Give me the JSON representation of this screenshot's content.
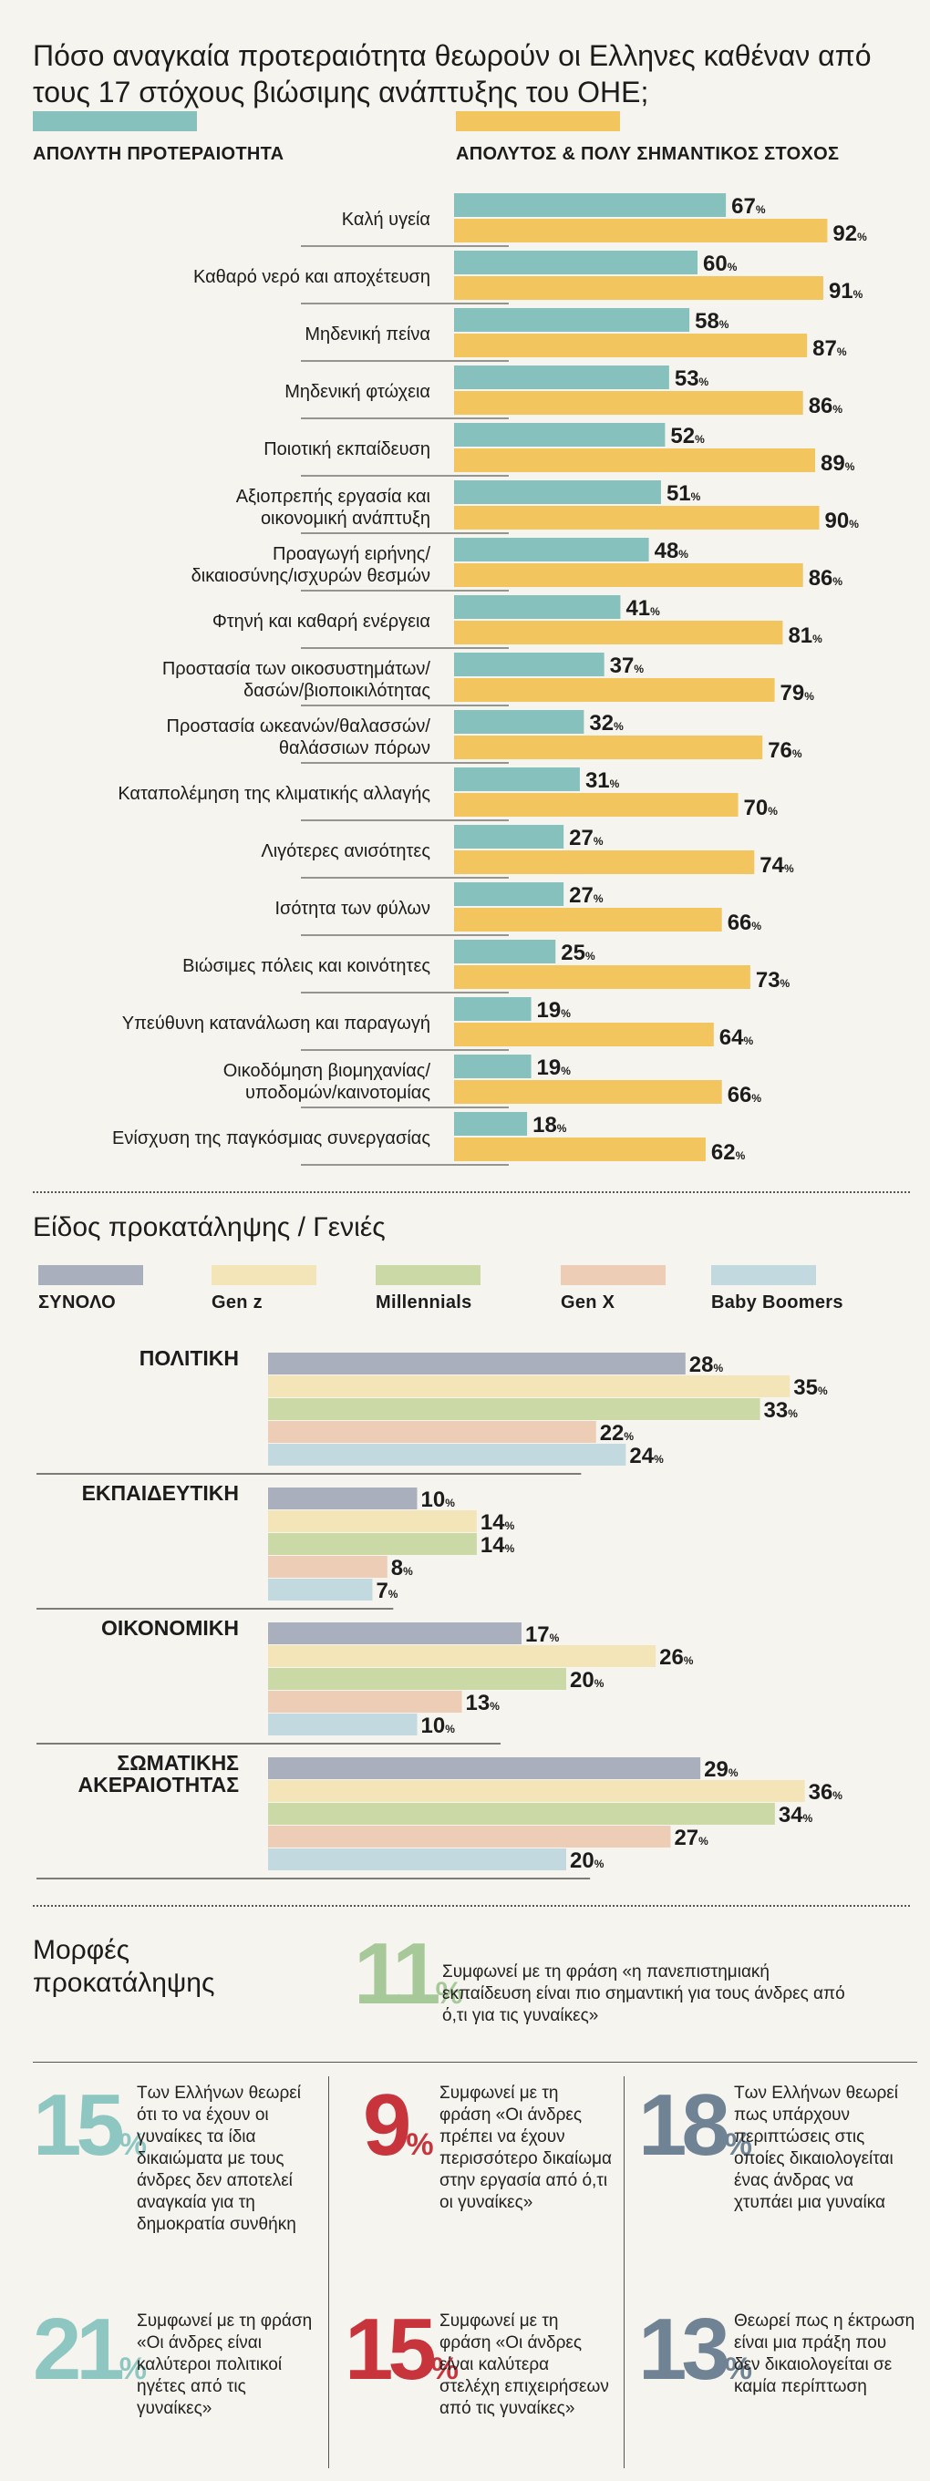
{
  "title": "Πόσο αναγκαία προτεραιότητα θεωρούν οι Ελληνες καθέναν από τους 17 στόχους βιώσιμης ανάπτυξης του ΟΗΕ;",
  "colors": {
    "teal": "#86c1bd",
    "gold": "#f2c55e",
    "total": "#a9afbd",
    "genz": "#f4e5b8",
    "millennials": "#cbd9a7",
    "genx": "#eecdb6",
    "boomers": "#c3d9e0",
    "green": "#a7c99a",
    "red": "#c8343c",
    "slate": "#6f8394",
    "tealnum": "#8ec7c2"
  },
  "chart_data": [
    {
      "type": "bar",
      "orientation": "horizontal",
      "legend_placement": "top",
      "categories": [
        "Καλή υγεία",
        "Καθαρό νερό και αποχέτευση",
        "Μηδενική πείνα",
        "Μηδενική φτώχεια",
        "Ποιοτική εκπαίδευση",
        "Αξιοπρεπής εργασία και\nοικονομική ανάπτυξη",
        "Προαγωγή ειρήνης/\nδικαιοσύνης/ισχυρών θεσμών",
        "Φτηνή και καθαρή ενέργεια",
        "Προστασία των οικοσυστημάτων/\nδασών/βιοποικιλότητας",
        "Προστασία ωκεανών/θαλασσών/\nθαλάσσιων πόρων",
        "Καταπολέμηση της κλιματικής αλλαγής",
        "Λιγότερες ανισότητες",
        "Ισότητα των φύλων",
        "Βιώσιμες πόλεις και κοινότητες",
        "Υπεύθυνη κατανάλωση και παραγωγή",
        "Οικοδόμηση βιομηχανίας/\nυποδομών/καινοτομίας",
        "Ενίσχυση της παγκόσμιας συνεργασίας"
      ],
      "series": [
        {
          "name": "ΑΠΟΛΥΤΗ ΠΡΟΤΕΡΑΙΟΤΗΤΑ",
          "values": [
            67,
            60,
            58,
            53,
            52,
            51,
            48,
            41,
            37,
            32,
            31,
            27,
            27,
            25,
            19,
            19,
            18
          ]
        },
        {
          "name": "ΑΠΟΛΥΤΟΣ & ΠΟΛΥ ΣΗΜΑΝΤΙΚΟΣ ΣΤΟΧΟΣ",
          "values": [
            92,
            91,
            87,
            86,
            89,
            90,
            86,
            81,
            79,
            76,
            70,
            74,
            66,
            73,
            64,
            66,
            62
          ]
        }
      ],
      "unit": "%"
    },
    {
      "type": "bar",
      "orientation": "horizontal",
      "title": "Είδος προκατάληψης / Γενιές",
      "legend_placement": "top",
      "categories": [
        "ΠΟΛΙΤΙΚΗ",
        "ΕΚΠΑΙΔΕΥΤΙΚΗ",
        "ΟΙΚΟΝΟΜΙΚΗ",
        "ΣΩΜΑΤΙΚΗΣ\nΑΚΕΡΑΙΟΤΗΤΑΣ"
      ],
      "series": [
        {
          "name": "ΣΥΝΟΛΟ",
          "values": [
            28,
            10,
            17,
            29
          ]
        },
        {
          "name": "Gen z",
          "values": [
            35,
            14,
            26,
            36
          ]
        },
        {
          "name": "Millennials",
          "values": [
            33,
            14,
            20,
            34
          ]
        },
        {
          "name": "Gen X",
          "values": [
            22,
            8,
            13,
            27
          ]
        },
        {
          "name": "Baby Boomers",
          "values": [
            24,
            7,
            10,
            20
          ]
        }
      ],
      "unit": "%"
    }
  ],
  "forms": {
    "title": "Μορφές\nπροκατάληψης",
    "headline": {
      "value": "11",
      "pct": "%",
      "text": "Συμφωνεί με τη φράση «η πανεπιστημιακή εκπαίδευση είναι πιο σημαντική για τους άνδρες από ό,τι για τις γυναίκες»"
    },
    "items": [
      {
        "value": "15",
        "pct": "%",
        "text": "Των Ελλήνων θεωρεί ότι το να έχουν οι γυναίκες τα ίδια δικαιώματα με τους άνδρες δεν αποτελεί αναγκαία για τη δημοκρατία συνθήκη"
      },
      {
        "value": "9",
        "pct": "%",
        "text": "Συμφωνεί με τη φράση «Οι άνδρες πρέπει να έχουν περισσότερο δικαίωμα στην εργασία από ό,τι οι γυναίκες»"
      },
      {
        "value": "18",
        "pct": "%",
        "text": "Των Ελλήνων θεωρεί πως υπάρχουν περιπτώσεις στις οποίες δικαιολογείται ένας άνδρας να χτυπάει μια γυναίκα"
      },
      {
        "value": "21",
        "pct": "%",
        "text": "Συμφωνεί με τη φράση «Οι άνδρες είναι καλύτεροι πολιτικοί ηγέτες από τις γυναίκες»"
      },
      {
        "value": "15",
        "pct": "%",
        "text": "Συμφωνεί με τη φράση «Οι άνδρες είναι καλύτερα στελέχη επιχειρήσεων από τις γυναίκες»"
      },
      {
        "value": "13",
        "pct": "%",
        "text": "Θεωρεί πως η έκτρωση είναι μια πράξη που δεν δικαιολογείται σε καμία περίπτωση"
      }
    ]
  }
}
